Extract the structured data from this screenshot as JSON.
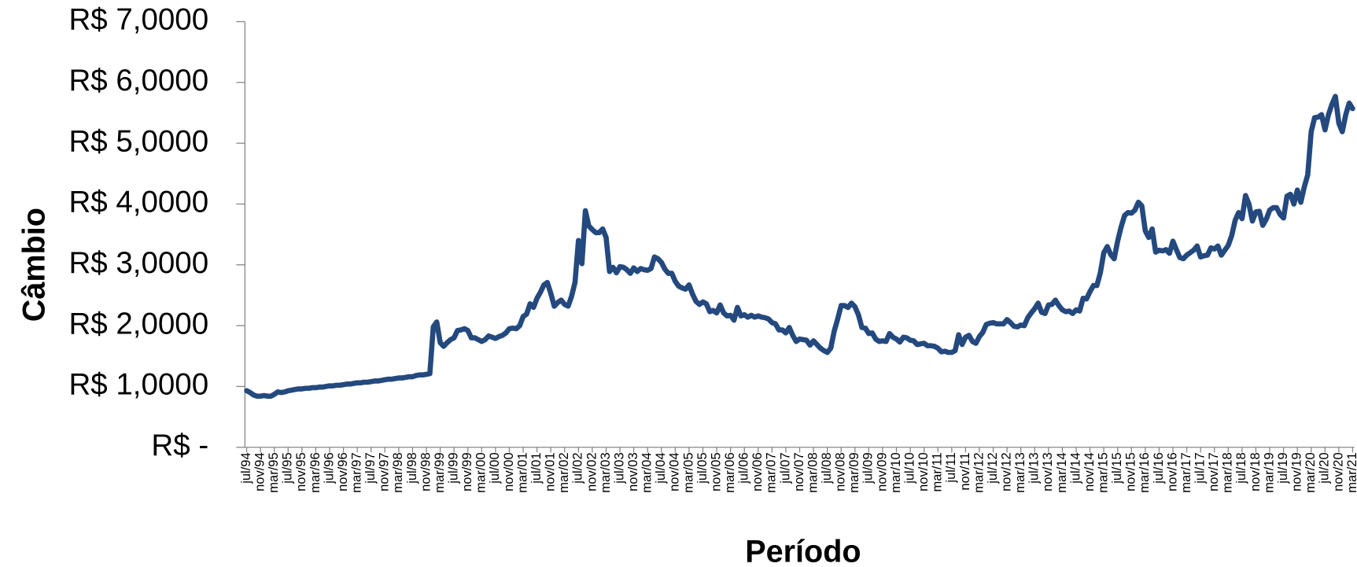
{
  "chart_data": {
    "type": "line",
    "y_label": "Câmbio",
    "x_label": "Período",
    "color": "#24497f",
    "ylim": [
      0,
      7
    ],
    "yticks": [
      {
        "value": 0,
        "label": "R$ -"
      },
      {
        "value": 1,
        "label": "R$ 1,0000"
      },
      {
        "value": 2,
        "label": "R$ 2,0000"
      },
      {
        "value": 3,
        "label": "R$ 3,0000"
      },
      {
        "value": 4,
        "label": "R$ 4,0000"
      },
      {
        "value": 5,
        "label": "R$ 5,0000"
      },
      {
        "value": 6,
        "label": "R$ 6,0000"
      },
      {
        "value": 7,
        "label": "R$ 7,0000"
      }
    ],
    "categories": [
      "jul/94",
      null,
      null,
      null,
      "nov/94",
      null,
      null,
      null,
      "mar/95",
      null,
      null,
      null,
      "jul/95",
      null,
      null,
      null,
      "nov/95",
      null,
      null,
      null,
      "mar/96",
      null,
      null,
      null,
      "jul/96",
      null,
      null,
      null,
      "nov/96",
      null,
      null,
      null,
      "mar/97",
      null,
      null,
      null,
      "jul/97",
      null,
      null,
      null,
      "nov/97",
      null,
      null,
      null,
      "mar/98",
      null,
      null,
      null,
      "jul/98",
      null,
      null,
      null,
      "nov/98",
      null,
      null,
      null,
      "mar/99",
      null,
      null,
      null,
      "jul/99",
      null,
      null,
      null,
      "nov/99",
      null,
      null,
      null,
      "mar/00",
      null,
      null,
      null,
      "jul/00",
      null,
      null,
      null,
      "nov/00",
      null,
      null,
      null,
      "mar/01",
      null,
      null,
      null,
      "jul/01",
      null,
      null,
      null,
      "nov/01",
      null,
      null,
      null,
      "mar/02",
      null,
      null,
      null,
      "jul/02",
      null,
      null,
      null,
      "nov/02",
      null,
      null,
      null,
      "mar/03",
      null,
      null,
      null,
      "jul/03",
      null,
      null,
      null,
      "nov/03",
      null,
      null,
      null,
      "mar/04",
      null,
      null,
      null,
      "jul/04",
      null,
      null,
      null,
      "nov/04",
      null,
      null,
      null,
      "mar/05",
      null,
      null,
      null,
      "jul/05",
      null,
      null,
      null,
      "nov/05",
      null,
      null,
      null,
      "mar/06",
      null,
      null,
      null,
      "jul/06",
      null,
      null,
      null,
      "nov/06",
      null,
      null,
      null,
      "mar/07",
      null,
      null,
      null,
      "jul/07",
      null,
      null,
      null,
      "nov/07",
      null,
      null,
      null,
      "mar/08",
      null,
      null,
      null,
      "jul/08",
      null,
      null,
      null,
      "nov/08",
      null,
      null,
      null,
      "mar/09",
      null,
      null,
      null,
      "jul/09",
      null,
      null,
      null,
      "nov/09",
      null,
      null,
      null,
      "mar/10",
      null,
      null,
      null,
      "jul/10",
      null,
      null,
      null,
      "nov/10",
      null,
      null,
      null,
      "mar/11",
      null,
      null,
      null,
      "jul/11",
      null,
      null,
      null,
      "nov/11",
      null,
      null,
      null,
      "mar/12",
      null,
      null,
      null,
      "jul/12",
      null,
      null,
      null,
      "nov/12",
      null,
      null,
      null,
      "mar/13",
      null,
      null,
      null,
      "jul/13",
      null,
      null,
      null,
      "nov/13",
      null,
      null,
      null,
      "mar/14",
      null,
      null,
      null,
      "jul/14",
      null,
      null,
      null,
      "nov/14",
      null,
      null,
      null,
      "mar/15",
      null,
      null,
      null,
      "jul/15",
      null,
      null,
      null,
      "nov/15",
      null,
      null,
      null,
      "mar/16",
      null,
      null,
      null,
      "jul/16",
      null,
      null,
      null,
      "nov/16",
      null,
      null,
      null,
      "mar/17",
      null,
      null,
      null,
      "jul/17",
      null,
      null,
      null,
      "nov/17",
      null,
      null,
      null,
      "mar/18",
      null,
      null,
      null,
      "jul/18",
      null,
      null,
      null,
      "nov/18",
      null,
      null,
      null,
      "mar/19",
      null,
      null,
      null,
      "jul/19",
      null,
      null,
      null,
      "nov/19",
      null,
      null,
      null,
      "mar/20",
      null,
      null,
      null,
      "jul/20",
      null,
      null,
      null,
      "nov/20",
      null,
      null,
      null,
      "mar/21"
    ],
    "values": [
      0.93,
      0.9,
      0.86,
      0.84,
      0.84,
      0.85,
      0.84,
      0.84,
      0.87,
      0.91,
      0.9,
      0.91,
      0.93,
      0.94,
      0.95,
      0.96,
      0.96,
      0.97,
      0.97,
      0.98,
      0.98,
      0.99,
      0.99,
      1.0,
      1.01,
      1.01,
      1.02,
      1.02,
      1.03,
      1.04,
      1.04,
      1.05,
      1.06,
      1.06,
      1.07,
      1.07,
      1.08,
      1.09,
      1.09,
      1.1,
      1.11,
      1.12,
      1.12,
      1.13,
      1.14,
      1.14,
      1.15,
      1.16,
      1.16,
      1.18,
      1.19,
      1.19,
      1.2,
      1.21,
      1.98,
      2.06,
      1.72,
      1.66,
      1.72,
      1.77,
      1.8,
      1.92,
      1.93,
      1.95,
      1.92,
      1.8,
      1.8,
      1.77,
      1.74,
      1.77,
      1.83,
      1.81,
      1.79,
      1.82,
      1.84,
      1.88,
      1.95,
      1.96,
      1.95,
      2.0,
      2.15,
      2.19,
      2.36,
      2.3,
      2.45,
      2.55,
      2.67,
      2.71,
      2.53,
      2.32,
      2.38,
      2.42,
      2.35,
      2.32,
      2.48,
      2.71,
      3.4,
      3.02,
      3.89,
      3.64,
      3.58,
      3.53,
      3.53,
      3.59,
      3.45,
      2.89,
      2.96,
      2.87,
      2.97,
      2.96,
      2.92,
      2.86,
      2.95,
      2.89,
      2.94,
      2.92,
      2.91,
      2.94,
      3.13,
      3.1,
      3.04,
      2.93,
      2.86,
      2.86,
      2.73,
      2.65,
      2.62,
      2.6,
      2.67,
      2.52,
      2.4,
      2.35,
      2.39,
      2.36,
      2.23,
      2.25,
      2.21,
      2.34,
      2.21,
      2.16,
      2.17,
      2.09,
      2.3,
      2.16,
      2.18,
      2.14,
      2.17,
      2.14,
      2.16,
      2.14,
      2.13,
      2.11,
      2.05,
      2.03,
      1.93,
      1.93,
      1.88,
      1.97,
      1.84,
      1.74,
      1.78,
      1.77,
      1.76,
      1.68,
      1.75,
      1.69,
      1.63,
      1.59,
      1.56,
      1.63,
      1.91,
      2.11,
      2.33,
      2.33,
      2.3,
      2.37,
      2.31,
      2.18,
      1.97,
      1.96,
      1.87,
      1.88,
      1.78,
      1.74,
      1.75,
      1.74,
      1.87,
      1.81,
      1.78,
      1.73,
      1.81,
      1.8,
      1.76,
      1.75,
      1.69,
      1.7,
      1.71,
      1.67,
      1.67,
      1.66,
      1.63,
      1.57,
      1.58,
      1.56,
      1.56,
      1.59,
      1.85,
      1.69,
      1.81,
      1.84,
      1.74,
      1.71,
      1.82,
      1.89,
      2.02,
      2.04,
      2.05,
      2.03,
      2.03,
      2.03,
      2.1,
      2.05,
      1.99,
      1.98,
      2.01,
      2.0,
      2.13,
      2.21,
      2.28,
      2.37,
      2.22,
      2.2,
      2.34,
      2.35,
      2.42,
      2.33,
      2.26,
      2.23,
      2.24,
      2.2,
      2.26,
      2.24,
      2.45,
      2.44,
      2.56,
      2.66,
      2.66,
      2.87,
      3.2,
      3.3,
      3.17,
      3.1,
      3.39,
      3.62,
      3.81,
      3.86,
      3.85,
      3.9,
      4.03,
      3.97,
      3.56,
      3.45,
      3.59,
      3.21,
      3.24,
      3.23,
      3.25,
      3.19,
      3.39,
      3.25,
      3.12,
      3.1,
      3.16,
      3.2,
      3.24,
      3.31,
      3.13,
      3.15,
      3.16,
      3.28,
      3.26,
      3.31,
      3.16,
      3.24,
      3.32,
      3.48,
      3.73,
      3.86,
      3.76,
      4.14,
      4.0,
      3.72,
      3.87,
      3.88,
      3.65,
      3.75,
      3.9,
      3.94,
      3.94,
      3.83,
      3.77,
      4.13,
      4.16,
      4.0,
      4.23,
      4.03,
      4.28,
      4.48,
      5.19,
      5.42,
      5.43,
      5.47,
      5.22,
      5.47,
      5.64,
      5.77,
      5.33,
      5.19,
      5.47,
      5.66,
      5.57
    ]
  }
}
